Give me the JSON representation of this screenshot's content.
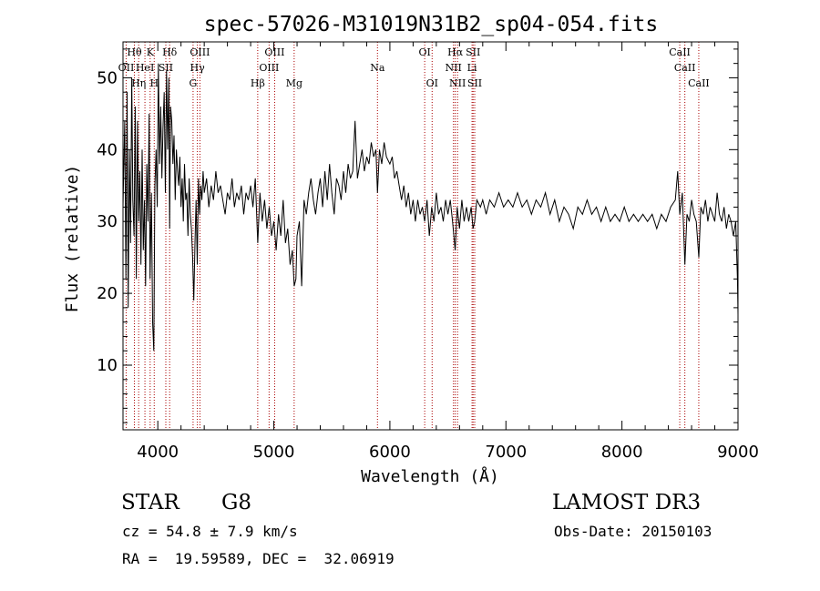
{
  "chart_data": {
    "type": "line",
    "title": "spec-57026-M31019N31B2_sp04-054.fits",
    "xlabel": "Wavelength (Å)",
    "ylabel": "Flux (relative)",
    "xlim": [
      3700,
      9000
    ],
    "ylim": [
      1,
      55
    ],
    "xticks": [
      4000,
      5000,
      6000,
      7000,
      8000,
      9000
    ],
    "yticks": [
      10,
      20,
      30,
      40,
      50
    ],
    "grid": false,
    "line_color": "#000000",
    "marker_color": "#aa0000",
    "spectrum": [
      [
        3700,
        32
      ],
      [
        3715,
        44
      ],
      [
        3725,
        22
      ],
      [
        3735,
        48
      ],
      [
        3745,
        18
      ],
      [
        3755,
        40
      ],
      [
        3765,
        27
      ],
      [
        3775,
        50
      ],
      [
        3785,
        33
      ],
      [
        3795,
        28
      ],
      [
        3805,
        46
      ],
      [
        3815,
        22
      ],
      [
        3825,
        44
      ],
      [
        3835,
        30
      ],
      [
        3845,
        37
      ],
      [
        3855,
        24
      ],
      [
        3865,
        40
      ],
      [
        3875,
        26
      ],
      [
        3885,
        33
      ],
      [
        3895,
        21
      ],
      [
        3905,
        38
      ],
      [
        3915,
        30
      ],
      [
        3925,
        45
      ],
      [
        3933,
        22
      ],
      [
        3945,
        34
      ],
      [
        3955,
        16
      ],
      [
        3965,
        12
      ],
      [
        3975,
        35
      ],
      [
        3985,
        40
      ],
      [
        3995,
        32
      ],
      [
        4005,
        52
      ],
      [
        4015,
        38
      ],
      [
        4025,
        46
      ],
      [
        4035,
        36
      ],
      [
        4045,
        43
      ],
      [
        4055,
        48
      ],
      [
        4065,
        34
      ],
      [
        4075,
        51
      ],
      [
        4085,
        40
      ],
      [
        4095,
        50
      ],
      [
        4102,
        29
      ],
      [
        4110,
        46
      ],
      [
        4120,
        44
      ],
      [
        4130,
        38
      ],
      [
        4140,
        42
      ],
      [
        4150,
        33
      ],
      [
        4160,
        40
      ],
      [
        4170,
        37
      ],
      [
        4180,
        35
      ],
      [
        4190,
        39
      ],
      [
        4200,
        32
      ],
      [
        4210,
        36
      ],
      [
        4220,
        30
      ],
      [
        4230,
        38
      ],
      [
        4240,
        33
      ],
      [
        4250,
        34
      ],
      [
        4260,
        28
      ],
      [
        4270,
        36
      ],
      [
        4280,
        31
      ],
      [
        4290,
        29
      ],
      [
        4300,
        25
      ],
      [
        4310,
        19
      ],
      [
        4320,
        27
      ],
      [
        4330,
        33
      ],
      [
        4340,
        24
      ],
      [
        4350,
        36
      ],
      [
        4360,
        31
      ],
      [
        4370,
        35
      ],
      [
        4380,
        33
      ],
      [
        4390,
        37
      ],
      [
        4400,
        34
      ],
      [
        4420,
        36
      ],
      [
        4440,
        32
      ],
      [
        4460,
        35
      ],
      [
        4480,
        33
      ],
      [
        4500,
        37
      ],
      [
        4520,
        34
      ],
      [
        4540,
        35
      ],
      [
        4560,
        33
      ],
      [
        4580,
        31
      ],
      [
        4600,
        34
      ],
      [
        4620,
        33
      ],
      [
        4640,
        36
      ],
      [
        4660,
        32
      ],
      [
        4680,
        34
      ],
      [
        4700,
        33
      ],
      [
        4720,
        35
      ],
      [
        4740,
        31
      ],
      [
        4760,
        34
      ],
      [
        4780,
        33
      ],
      [
        4800,
        35
      ],
      [
        4820,
        32
      ],
      [
        4840,
        36
      ],
      [
        4861,
        27
      ],
      [
        4880,
        34
      ],
      [
        4900,
        30
      ],
      [
        4920,
        33
      ],
      [
        4940,
        29
      ],
      [
        4960,
        32
      ],
      [
        4980,
        28
      ],
      [
        5000,
        30
      ],
      [
        5020,
        26
      ],
      [
        5040,
        31
      ],
      [
        5060,
        28
      ],
      [
        5080,
        33
      ],
      [
        5100,
        27
      ],
      [
        5120,
        29
      ],
      [
        5140,
        24
      ],
      [
        5160,
        26
      ],
      [
        5175,
        21
      ],
      [
        5190,
        22
      ],
      [
        5200,
        28
      ],
      [
        5220,
        30
      ],
      [
        5240,
        21
      ],
      [
        5260,
        33
      ],
      [
        5280,
        31
      ],
      [
        5300,
        34
      ],
      [
        5320,
        36
      ],
      [
        5340,
        33
      ],
      [
        5360,
        31
      ],
      [
        5380,
        34
      ],
      [
        5400,
        36
      ],
      [
        5420,
        32
      ],
      [
        5440,
        37
      ],
      [
        5460,
        33
      ],
      [
        5480,
        38
      ],
      [
        5500,
        34
      ],
      [
        5520,
        31
      ],
      [
        5540,
        36
      ],
      [
        5560,
        35
      ],
      [
        5580,
        33
      ],
      [
        5600,
        37
      ],
      [
        5620,
        34
      ],
      [
        5640,
        38
      ],
      [
        5660,
        36
      ],
      [
        5680,
        37
      ],
      [
        5700,
        44
      ],
      [
        5720,
        36
      ],
      [
        5740,
        38
      ],
      [
        5760,
        40
      ],
      [
        5780,
        37
      ],
      [
        5800,
        39
      ],
      [
        5820,
        38
      ],
      [
        5840,
        41
      ],
      [
        5860,
        39
      ],
      [
        5880,
        40
      ],
      [
        5893,
        34
      ],
      [
        5910,
        40
      ],
      [
        5930,
        38
      ],
      [
        5950,
        41
      ],
      [
        5970,
        39
      ],
      [
        6000,
        38
      ],
      [
        6020,
        39
      ],
      [
        6040,
        36
      ],
      [
        6060,
        37
      ],
      [
        6080,
        35
      ],
      [
        6100,
        33
      ],
      [
        6120,
        35
      ],
      [
        6140,
        32
      ],
      [
        6160,
        34
      ],
      [
        6180,
        31
      ],
      [
        6200,
        33
      ],
      [
        6220,
        30
      ],
      [
        6240,
        33
      ],
      [
        6260,
        31
      ],
      [
        6280,
        32
      ],
      [
        6300,
        30
      ],
      [
        6320,
        33
      ],
      [
        6340,
        28
      ],
      [
        6360,
        32
      ],
      [
        6380,
        30
      ],
      [
        6400,
        34
      ],
      [
        6420,
        31
      ],
      [
        6440,
        32
      ],
      [
        6460,
        30
      ],
      [
        6480,
        33
      ],
      [
        6500,
        31
      ],
      [
        6520,
        33
      ],
      [
        6540,
        30
      ],
      [
        6563,
        26
      ],
      [
        6580,
        32
      ],
      [
        6600,
        29
      ],
      [
        6620,
        33
      ],
      [
        6640,
        30
      ],
      [
        6660,
        32
      ],
      [
        6680,
        30
      ],
      [
        6700,
        32
      ],
      [
        6717,
        29
      ],
      [
        6731,
        30
      ],
      [
        6750,
        33
      ],
      [
        6780,
        32
      ],
      [
        6800,
        33
      ],
      [
        6830,
        31
      ],
      [
        6860,
        33
      ],
      [
        6900,
        32
      ],
      [
        6940,
        34
      ],
      [
        6980,
        32
      ],
      [
        7020,
        33
      ],
      [
        7060,
        32
      ],
      [
        7100,
        34
      ],
      [
        7140,
        32
      ],
      [
        7180,
        33
      ],
      [
        7220,
        31
      ],
      [
        7260,
        33
      ],
      [
        7300,
        32
      ],
      [
        7340,
        34
      ],
      [
        7380,
        31
      ],
      [
        7420,
        33
      ],
      [
        7460,
        30
      ],
      [
        7500,
        32
      ],
      [
        7540,
        31
      ],
      [
        7580,
        29
      ],
      [
        7620,
        32
      ],
      [
        7660,
        31
      ],
      [
        7700,
        33
      ],
      [
        7740,
        31
      ],
      [
        7780,
        32
      ],
      [
        7820,
        30
      ],
      [
        7860,
        32
      ],
      [
        7900,
        30
      ],
      [
        7940,
        31
      ],
      [
        7980,
        30
      ],
      [
        8020,
        32
      ],
      [
        8060,
        30
      ],
      [
        8100,
        31
      ],
      [
        8140,
        30
      ],
      [
        8180,
        31
      ],
      [
        8220,
        30
      ],
      [
        8260,
        31
      ],
      [
        8300,
        29
      ],
      [
        8340,
        31
      ],
      [
        8380,
        30
      ],
      [
        8420,
        32
      ],
      [
        8460,
        33
      ],
      [
        8480,
        37
      ],
      [
        8498,
        31
      ],
      [
        8520,
        34
      ],
      [
        8542,
        24
      ],
      [
        8560,
        31
      ],
      [
        8580,
        30
      ],
      [
        8600,
        33
      ],
      [
        8620,
        31
      ],
      [
        8640,
        30
      ],
      [
        8662,
        25
      ],
      [
        8680,
        32
      ],
      [
        8700,
        31
      ],
      [
        8720,
        33
      ],
      [
        8740,
        30
      ],
      [
        8760,
        32
      ],
      [
        8780,
        31
      ],
      [
        8800,
        30
      ],
      [
        8820,
        34
      ],
      [
        8840,
        31
      ],
      [
        8860,
        30
      ],
      [
        8880,
        32
      ],
      [
        8900,
        29
      ],
      [
        8920,
        31
      ],
      [
        8940,
        30
      ],
      [
        8960,
        28
      ],
      [
        8980,
        30
      ],
      [
        8995,
        22
      ],
      [
        9000,
        17
      ]
    ],
    "lines": [
      {
        "label": "Hθ",
        "wavelength": 3798,
        "row": 0
      },
      {
        "label": "OII",
        "wavelength": 3727,
        "row": 1
      },
      {
        "label": "Hη",
        "wavelength": 3835,
        "row": 2
      },
      {
        "label": "K",
        "wavelength": 3934,
        "row": 0
      },
      {
        "label": "HeI",
        "wavelength": 3889,
        "row": 1
      },
      {
        "label": "H",
        "wavelength": 3969,
        "row": 2
      },
      {
        "label": "Hδ",
        "wavelength": 4102,
        "row": 0
      },
      {
        "label": "SII",
        "wavelength": 4069,
        "row": 1
      },
      {
        "label": "OIII",
        "wavelength": 4363,
        "row": 0
      },
      {
        "label": "Hγ",
        "wavelength": 4341,
        "row": 1
      },
      {
        "label": "G",
        "wavelength": 4304,
        "row": 2
      },
      {
        "label": "Hβ",
        "wavelength": 4861,
        "row": 2
      },
      {
        "label": "OIII",
        "wavelength": 5007,
        "row": 0
      },
      {
        "label": "OIII",
        "wavelength": 4959,
        "row": 1
      },
      {
        "label": "Mg",
        "wavelength": 5175,
        "row": 2
      },
      {
        "label": "Na",
        "wavelength": 5893,
        "row": 1
      },
      {
        "label": "OI",
        "wavelength": 6300,
        "row": 0
      },
      {
        "label": "OI",
        "wavelength": 6364,
        "row": 2
      },
      {
        "label": "Hα",
        "wavelength": 6563,
        "row": 0
      },
      {
        "label": "NII",
        "wavelength": 6548,
        "row": 1
      },
      {
        "label": "NII",
        "wavelength": 6583,
        "row": 2
      },
      {
        "label": "SII",
        "wavelength": 6717,
        "row": 0
      },
      {
        "label": "Li",
        "wavelength": 6708,
        "row": 1
      },
      {
        "label": "SII",
        "wavelength": 6731,
        "row": 2
      },
      {
        "label": "CaII",
        "wavelength": 8498,
        "row": 0
      },
      {
        "label": "CaII",
        "wavelength": 8542,
        "row": 1
      },
      {
        "label": "CaII",
        "wavelength": 8662,
        "row": 2
      }
    ]
  },
  "info": {
    "class_label": "STAR",
    "subclass": "G8",
    "survey": "LAMOST DR3",
    "cz": "cz = 54.8 ± 7.9 km/s",
    "obs_date": "Obs-Date: 20150103",
    "coords": "RA =  19.59589, DEC =  32.06919"
  }
}
